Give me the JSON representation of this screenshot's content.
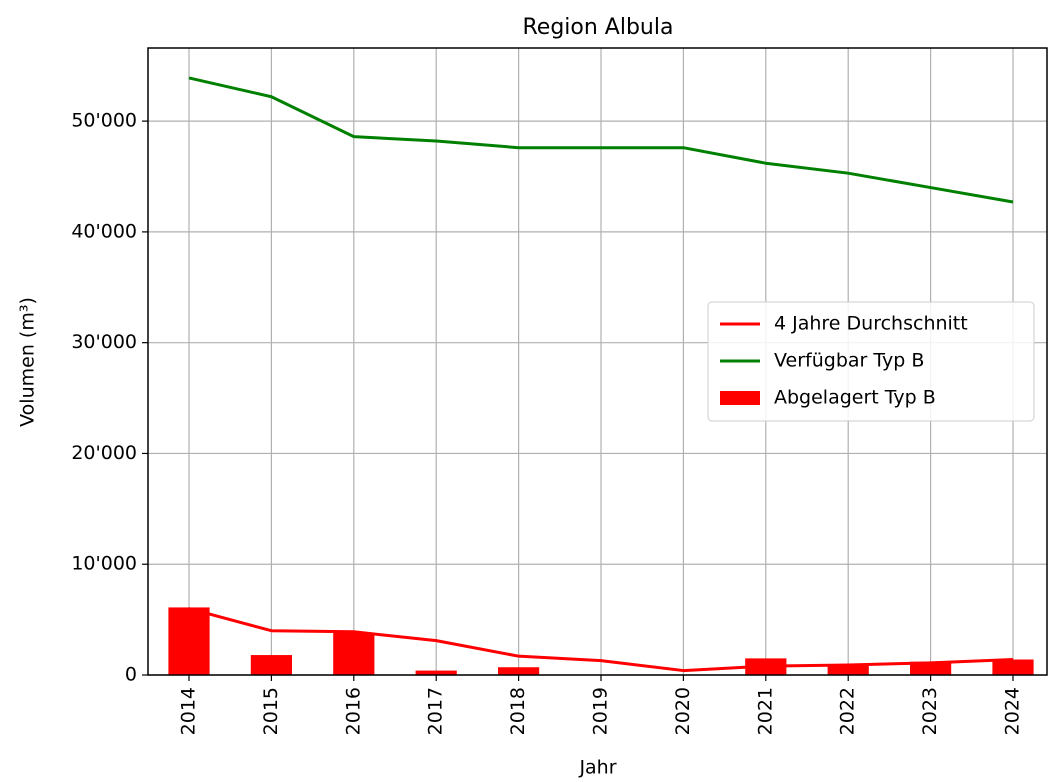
{
  "chart_data": {
    "type": "combo",
    "title": "Region Albula",
    "xlabel": "Jahr",
    "ylabel": "Volumen (m³)",
    "categories": [
      "2014",
      "2015",
      "2016",
      "2017",
      "2018",
      "2019",
      "2020",
      "2021",
      "2022",
      "2023",
      "2024"
    ],
    "series": [
      {
        "name": "4 Jahre Durchschnitt",
        "type": "line",
        "color": "#ff0000",
        "values": [
          6000,
          4000,
          3900,
          3100,
          1700,
          1300,
          400,
          800,
          900,
          1100,
          1400
        ]
      },
      {
        "name": "Verfügbar Typ B",
        "type": "line",
        "color": "#008000",
        "values": [
          53900,
          52200,
          48600,
          48200,
          47600,
          47600,
          47600,
          46200,
          45300,
          44000,
          42700
        ]
      },
      {
        "name": "Abgelagert Typ B",
        "type": "bar",
        "color": "#ff0000",
        "values": [
          6100,
          1800,
          3800,
          400,
          700,
          0,
          0,
          1500,
          900,
          1200,
          1400
        ]
      }
    ],
    "ylim": [
      0,
      56600
    ],
    "yticks": [
      0,
      {
        "value": 10000,
        "label": "10'000"
      },
      {
        "value": 20000,
        "label": "20'000"
      },
      {
        "value": 30000,
        "label": "30'000"
      },
      {
        "value": 40000,
        "label": "40'000"
      },
      {
        "value": 50000,
        "label": "50'000"
      }
    ],
    "grid": true,
    "legend": "center right"
  }
}
